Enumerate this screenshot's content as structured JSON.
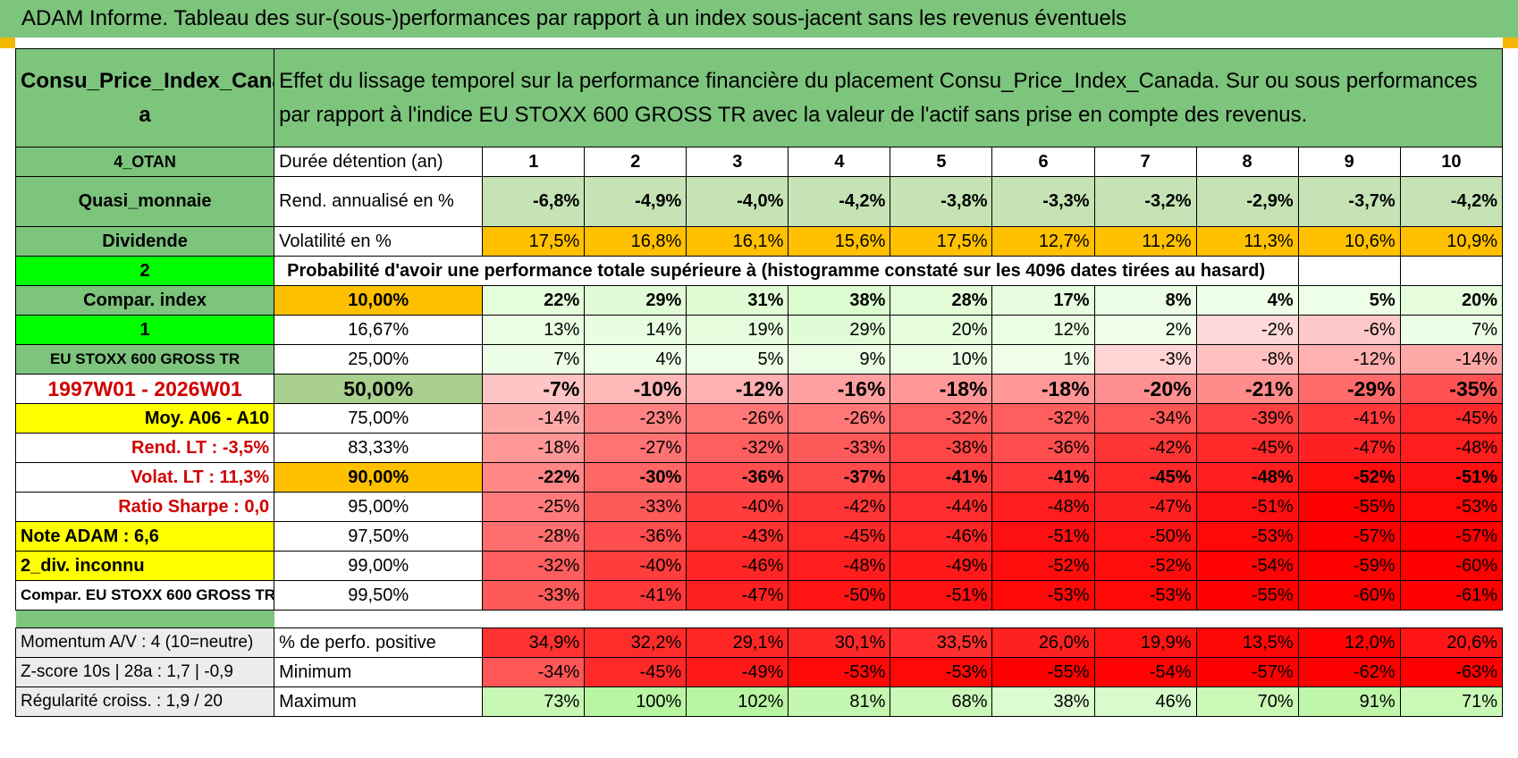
{
  "header": {
    "title": "ADAM Informe. Tableau des sur-(sous-)performances par rapport à un index sous-jacent sans les revenus éventuels"
  },
  "asset": {
    "name": "Consu_Price_Index_Canad a",
    "description": "Effet du lissage temporel sur la performance financière du placement Consu_Price_Index_Canada. Sur ou sous performances par rapport à l'indice EU STOXX 600 GROSS TR avec la valeur de l'actif sans prise en compte des revenus."
  },
  "side": {
    "category": "4_OTAN",
    "type": "Quasi_monnaie",
    "dividend_label": "Dividende",
    "value_2": "2",
    "compar_index": "Compar. index",
    "value_1": "1",
    "index_name": "EU STOXX 600 GROSS TR",
    "period": "1997W01 - 2026W01",
    "moy": "Moy. A06 - A10",
    "rend_lt": "Rend. LT :    -3,5%",
    "volat_lt": "Volat. LT :    11,3%",
    "sharpe": "Ratio Sharpe :     0,0",
    "note": "Note ADAM : 6,6",
    "div": "2_div. inconnu",
    "compar": "Compar. EU STOXX 600 GROSS TR",
    "momentum": "Momentum A/V : 4 (10=neutre)",
    "zscore": "Z-score 10s | 28a : 1,7 | -0,9",
    "regularite": "Régularité croiss. : 1,9 / 20"
  },
  "labels": {
    "duree": "Durée détention (an)",
    "rend": "Rend. annualisé en %",
    "vol": "Volatilité en %",
    "proba": "Probabilité d'avoir une performance totale supérieure à (histogramme constaté sur les 4096 dates tirées au hasard)",
    "pos": "% de perfo. positive",
    "min": "Minimum",
    "max": "Maximum"
  },
  "years": [
    "1",
    "2",
    "3",
    "4",
    "5",
    "6",
    "7",
    "8",
    "9",
    "10"
  ],
  "rend": [
    "-6,8%",
    "-4,9%",
    "-4,0%",
    "-4,2%",
    "-3,8%",
    "-3,3%",
    "-3,2%",
    "-2,9%",
    "-3,7%",
    "-4,2%"
  ],
  "vol": [
    "17,5%",
    "16,8%",
    "16,1%",
    "15,6%",
    "17,5%",
    "12,7%",
    "11,2%",
    "11,3%",
    "10,6%",
    "10,9%"
  ],
  "rows": [
    {
      "p": "10,00%",
      "v": [
        "22%",
        "29%",
        "31%",
        "38%",
        "28%",
        "17%",
        "8%",
        "4%",
        "5%",
        "20%"
      ]
    },
    {
      "p": "16,67%",
      "v": [
        "13%",
        "14%",
        "19%",
        "29%",
        "20%",
        "12%",
        "2%",
        "-2%",
        "-6%",
        "7%"
      ]
    },
    {
      "p": "25,00%",
      "v": [
        "7%",
        "4%",
        "5%",
        "9%",
        "10%",
        "1%",
        "-3%",
        "-8%",
        "-12%",
        "-14%"
      ]
    },
    {
      "p": "50,00%",
      "v": [
        "-7%",
        "-10%",
        "-12%",
        "-16%",
        "-18%",
        "-18%",
        "-20%",
        "-21%",
        "-29%",
        "-35%"
      ]
    },
    {
      "p": "75,00%",
      "v": [
        "-14%",
        "-23%",
        "-26%",
        "-26%",
        "-32%",
        "-32%",
        "-34%",
        "-39%",
        "-41%",
        "-45%"
      ]
    },
    {
      "p": "83,33%",
      "v": [
        "-18%",
        "-27%",
        "-32%",
        "-33%",
        "-38%",
        "-36%",
        "-42%",
        "-45%",
        "-47%",
        "-48%"
      ]
    },
    {
      "p": "90,00%",
      "v": [
        "-22%",
        "-30%",
        "-36%",
        "-37%",
        "-41%",
        "-41%",
        "-45%",
        "-48%",
        "-52%",
        "-51%"
      ]
    },
    {
      "p": "95,00%",
      "v": [
        "-25%",
        "-33%",
        "-40%",
        "-42%",
        "-44%",
        "-48%",
        "-47%",
        "-51%",
        "-55%",
        "-53%"
      ]
    },
    {
      "p": "97,50%",
      "v": [
        "-28%",
        "-36%",
        "-43%",
        "-45%",
        "-46%",
        "-51%",
        "-50%",
        "-53%",
        "-57%",
        "-57%"
      ]
    },
    {
      "p": "99,00%",
      "v": [
        "-32%",
        "-40%",
        "-46%",
        "-48%",
        "-49%",
        "-52%",
        "-52%",
        "-54%",
        "-59%",
        "-60%"
      ]
    },
    {
      "p": "99,50%",
      "v": [
        "-33%",
        "-41%",
        "-47%",
        "-50%",
        "-51%",
        "-53%",
        "-53%",
        "-55%",
        "-60%",
        "-61%"
      ]
    }
  ],
  "pos": [
    "34,9%",
    "32,2%",
    "29,1%",
    "30,1%",
    "33,5%",
    "26,0%",
    "19,9%",
    "13,5%",
    "12,0%",
    "20,6%"
  ],
  "min": [
    "-34%",
    "-45%",
    "-49%",
    "-53%",
    "-53%",
    "-55%",
    "-54%",
    "-57%",
    "-62%",
    "-63%"
  ],
  "max": [
    "73%",
    "100%",
    "102%",
    "81%",
    "68%",
    "38%",
    "46%",
    "70%",
    "91%",
    "71%"
  ],
  "colors": {
    "green_header": "#7dc47d",
    "orange": "#ffc000",
    "yellow": "#ffff00",
    "bright_green": "#00ff00",
    "red_text": "#d00000"
  }
}
